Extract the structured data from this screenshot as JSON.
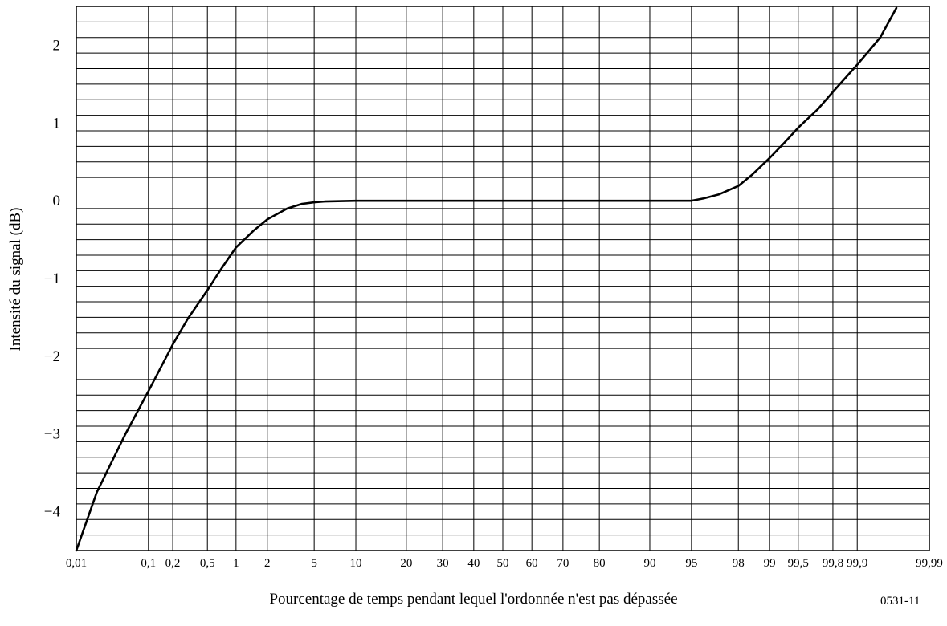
{
  "chart_data": {
    "type": "line",
    "title": "",
    "xlabel": "Pourcentage de temps pendant lequel l'ordonnée n'est pas dépassée",
    "ylabel": "Intensité du signal (dB)",
    "figure_code": "0531-11",
    "x_scale": "normal-probability",
    "ylim": [
      -4.5,
      2.5
    ],
    "grid": true,
    "x_ticks": [
      {
        "value": 0.01,
        "label": "0,01"
      },
      {
        "value": 0.1,
        "label": "0,1"
      },
      {
        "value": 0.2,
        "label": "0,2"
      },
      {
        "value": 0.5,
        "label": "0,5"
      },
      {
        "value": 1,
        "label": "1"
      },
      {
        "value": 2,
        "label": "2"
      },
      {
        "value": 5,
        "label": "5"
      },
      {
        "value": 10,
        "label": "10"
      },
      {
        "value": 20,
        "label": "20"
      },
      {
        "value": 30,
        "label": "30"
      },
      {
        "value": 40,
        "label": "40"
      },
      {
        "value": 50,
        "label": "50"
      },
      {
        "value": 60,
        "label": "60"
      },
      {
        "value": 70,
        "label": "70"
      },
      {
        "value": 80,
        "label": "80"
      },
      {
        "value": 90,
        "label": "90"
      },
      {
        "value": 95,
        "label": "95"
      },
      {
        "value": 98,
        "label": "98"
      },
      {
        "value": 99,
        "label": "99"
      },
      {
        "value": 99.5,
        "label": "99,5"
      },
      {
        "value": 99.8,
        "label": "99,8"
      },
      {
        "value": 99.9,
        "label": "99,9"
      },
      {
        "value": 99.99,
        "label": "99,99"
      }
    ],
    "y_ticks": [
      {
        "value": 2,
        "label": "2"
      },
      {
        "value": 1,
        "label": "1"
      },
      {
        "value": 0,
        "label": "0"
      },
      {
        "value": -1,
        "label": "−1"
      },
      {
        "value": -2,
        "label": "−2"
      },
      {
        "value": -3,
        "label": "−3"
      },
      {
        "value": -4,
        "label": "−4"
      }
    ],
    "y_minor_step": 0.2,
    "series": [
      {
        "x": [
          0.01,
          0.02,
          0.05,
          0.1,
          0.2,
          0.3,
          0.5,
          0.7,
          1,
          1.5,
          2,
          3,
          4,
          5,
          6,
          10,
          30,
          50,
          70,
          90,
          95,
          96,
          97,
          98,
          98.5,
          99,
          99.3,
          99.5,
          99.7,
          99.8,
          99.9,
          99.95,
          99.97
        ],
        "y": [
          -4.5,
          -3.75,
          -3.0,
          -2.45,
          -1.85,
          -1.52,
          -1.15,
          -0.88,
          -0.6,
          -0.38,
          -0.24,
          -0.1,
          -0.04,
          -0.02,
          -0.01,
          0,
          0,
          0,
          0,
          0,
          0,
          0.03,
          0.08,
          0.19,
          0.33,
          0.55,
          0.75,
          0.94,
          1.18,
          1.4,
          1.75,
          2.1,
          2.48
        ]
      }
    ]
  }
}
